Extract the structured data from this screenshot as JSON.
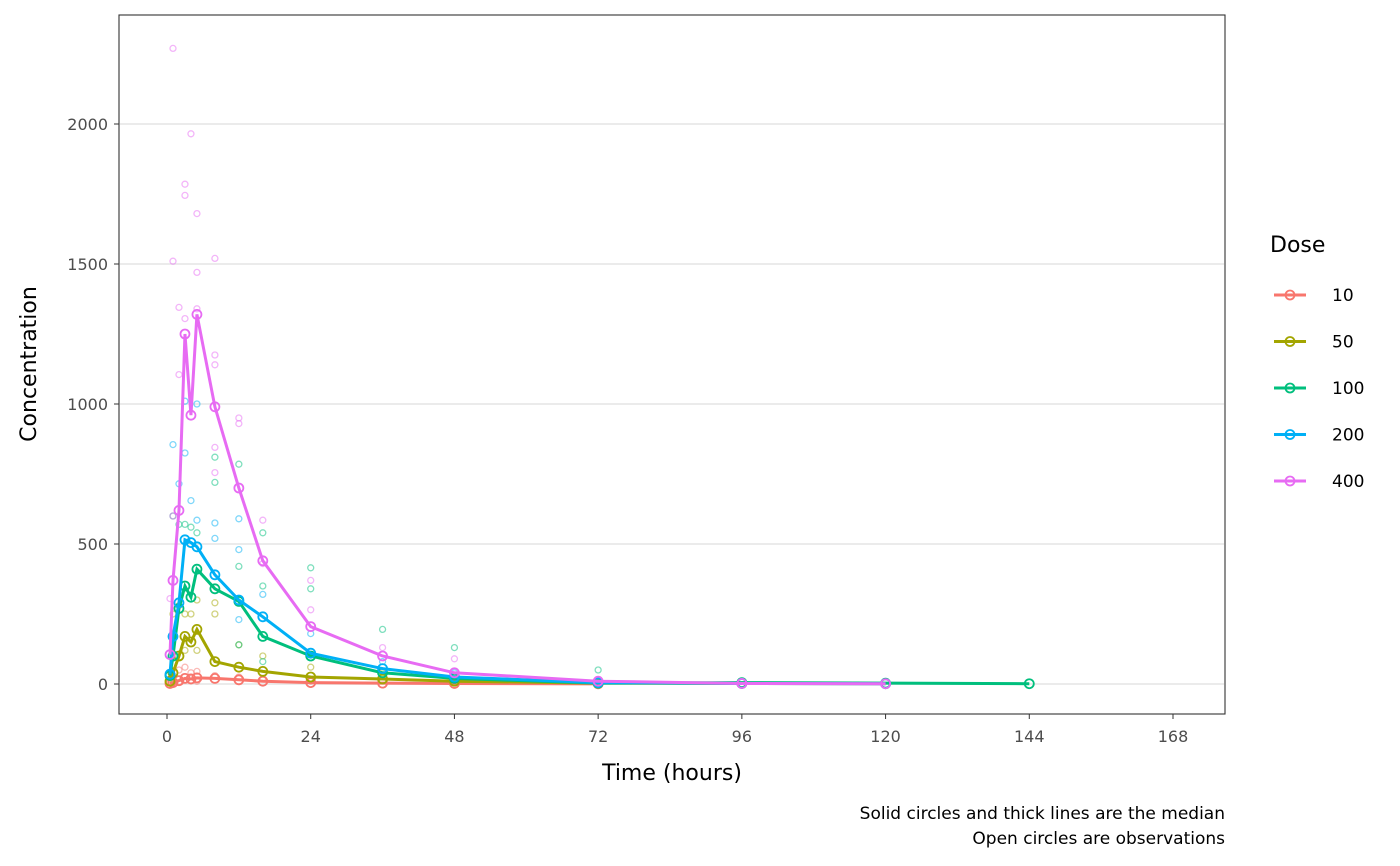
{
  "chart_data": {
    "type": "line",
    "xlabel": "Time (hours)",
    "ylabel": "Concentration",
    "xlim": [
      -8,
      177
    ],
    "ylim": [
      -110,
      2330
    ],
    "xticks": [
      0,
      24,
      48,
      72,
      96,
      120,
      144,
      168
    ],
    "yticks": [
      0,
      500,
      1000,
      1500,
      2000
    ],
    "grid": "horizontal major",
    "legend": {
      "title": "Dose",
      "placement": "right"
    },
    "caption": [
      "Solid circles and thick lines are the median",
      "Open circles are observations"
    ],
    "series": [
      {
        "name": "10",
        "color": "#F8766D",
        "median": [
          [
            0.5,
            2
          ],
          [
            1,
            5
          ],
          [
            2,
            12
          ],
          [
            3,
            20
          ],
          [
            4,
            18
          ],
          [
            5,
            22
          ],
          [
            8,
            20
          ],
          [
            12,
            15
          ],
          [
            16,
            10
          ],
          [
            24,
            5
          ],
          [
            36,
            3
          ],
          [
            48,
            2
          ],
          [
            72,
            0.5
          ]
        ],
        "observations": [
          [
            1,
            30
          ],
          [
            2,
            50
          ],
          [
            3,
            60
          ],
          [
            4,
            40
          ],
          [
            5,
            45
          ],
          [
            8,
            30
          ],
          [
            12,
            25
          ],
          [
            16,
            20
          ],
          [
            24,
            10
          ],
          [
            0.5,
            8
          ],
          [
            2,
            5
          ],
          [
            5,
            10
          ]
        ]
      },
      {
        "name": "50",
        "color": "#A3A500",
        "median": [
          [
            0.5,
            10
          ],
          [
            1,
            40
          ],
          [
            2,
            100
          ],
          [
            3,
            170
          ],
          [
            4,
            150
          ],
          [
            5,
            195
          ],
          [
            8,
            80
          ],
          [
            12,
            60
          ],
          [
            16,
            45
          ],
          [
            24,
            25
          ],
          [
            36,
            18
          ],
          [
            48,
            10
          ],
          [
            72,
            3
          ],
          [
            96,
            2
          ],
          [
            120,
            1
          ]
        ],
        "observations": [
          [
            1,
            250
          ],
          [
            2,
            280
          ],
          [
            3,
            250
          ],
          [
            4,
            250
          ],
          [
            5,
            300
          ],
          [
            8,
            290
          ],
          [
            8,
            250
          ],
          [
            12,
            140
          ],
          [
            16,
            100
          ],
          [
            24,
            60
          ],
          [
            36,
            40
          ],
          [
            48,
            20
          ],
          [
            3,
            120
          ],
          [
            5,
            120
          ]
        ]
      },
      {
        "name": "100",
        "color": "#00BF7D",
        "median": [
          [
            0.5,
            30
          ],
          [
            1,
            100
          ],
          [
            2,
            270
          ],
          [
            3,
            350
          ],
          [
            4,
            310
          ],
          [
            5,
            410
          ],
          [
            8,
            340
          ],
          [
            12,
            295
          ],
          [
            16,
            170
          ],
          [
            24,
            100
          ],
          [
            36,
            40
          ],
          [
            48,
            20
          ],
          [
            72,
            3
          ],
          [
            96,
            5
          ],
          [
            120,
            3
          ],
          [
            144,
            1
          ]
        ],
        "observations": [
          [
            1,
            600
          ],
          [
            2,
            570
          ],
          [
            3,
            570
          ],
          [
            4,
            560
          ],
          [
            5,
            540
          ],
          [
            8,
            810
          ],
          [
            8,
            720
          ],
          [
            12,
            785
          ],
          [
            12,
            420
          ],
          [
            16,
            350
          ],
          [
            16,
            540
          ],
          [
            24,
            415
          ],
          [
            24,
            340
          ],
          [
            36,
            195
          ],
          [
            48,
            130
          ],
          [
            72,
            50
          ],
          [
            12,
            140
          ],
          [
            16,
            80
          ]
        ]
      },
      {
        "name": "200",
        "color": "#00B0F6",
        "median": [
          [
            0.5,
            35
          ],
          [
            1,
            170
          ],
          [
            2,
            290
          ],
          [
            3,
            515
          ],
          [
            4,
            505
          ],
          [
            5,
            490
          ],
          [
            8,
            390
          ],
          [
            12,
            300
          ],
          [
            16,
            240
          ],
          [
            24,
            110
          ],
          [
            36,
            55
          ],
          [
            48,
            25
          ],
          [
            72,
            5
          ],
          [
            96,
            2
          ],
          [
            120,
            1
          ]
        ],
        "observations": [
          [
            1,
            855
          ],
          [
            2,
            715
          ],
          [
            3,
            1010
          ],
          [
            3,
            825
          ],
          [
            4,
            655
          ],
          [
            5,
            1000
          ],
          [
            5,
            585
          ],
          [
            8,
            575
          ],
          [
            8,
            520
          ],
          [
            12,
            590
          ],
          [
            12,
            480
          ],
          [
            16,
            320
          ],
          [
            24,
            180
          ],
          [
            36,
            80
          ],
          [
            48,
            40
          ],
          [
            12,
            230
          ]
        ]
      },
      {
        "name": "400",
        "color": "#E76BF3",
        "median": [
          [
            0.5,
            105
          ],
          [
            1,
            370
          ],
          [
            2,
            620
          ],
          [
            3,
            1250
          ],
          [
            4,
            960
          ],
          [
            5,
            1320
          ],
          [
            8,
            990
          ],
          [
            12,
            700
          ],
          [
            16,
            440
          ],
          [
            24,
            205
          ],
          [
            36,
            100
          ],
          [
            48,
            40
          ],
          [
            72,
            10
          ],
          [
            96,
            2
          ],
          [
            120,
            1
          ]
        ],
        "observations": [
          [
            1,
            2270
          ],
          [
            1,
            1510
          ],
          [
            2,
            1345
          ],
          [
            2,
            1105
          ],
          [
            3,
            1785
          ],
          [
            3,
            1745
          ],
          [
            3,
            1305
          ],
          [
            4,
            1965
          ],
          [
            5,
            1680
          ],
          [
            5,
            1470
          ],
          [
            5,
            1340
          ],
          [
            8,
            1520
          ],
          [
            8,
            1175
          ],
          [
            8,
            1140
          ],
          [
            8,
            845
          ],
          [
            8,
            755
          ],
          [
            12,
            950
          ],
          [
            12,
            930
          ],
          [
            16,
            585
          ],
          [
            16,
            430
          ],
          [
            24,
            370
          ],
          [
            24,
            265
          ],
          [
            36,
            130
          ],
          [
            48,
            90
          ],
          [
            0.5,
            305
          ],
          [
            1,
            600
          ]
        ]
      }
    ]
  }
}
